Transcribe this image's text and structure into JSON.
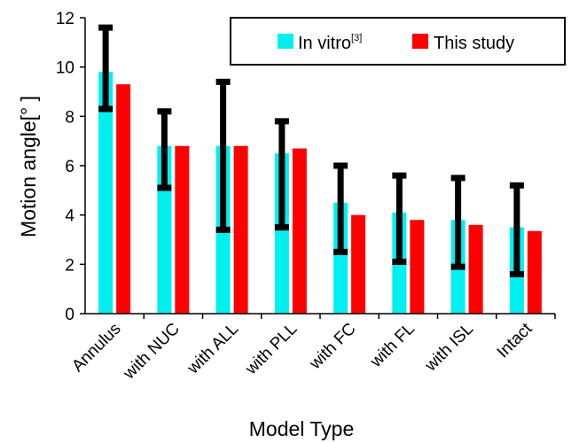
{
  "chart_data": {
    "type": "bar",
    "title": "",
    "xlabel": "Model Type",
    "ylabel": "Motion angle[° ]",
    "ylim": [
      0,
      12
    ],
    "ytick_step": 2,
    "yticks": [
      "0",
      "2",
      "4",
      "6",
      "8",
      "10",
      "12"
    ],
    "grid": false,
    "legend_position": "top-right",
    "categories": [
      "Annulus",
      "with NUC",
      "with ALL",
      "with PLL",
      "with FC",
      "with FL",
      "with ISL",
      "Intact"
    ],
    "series": [
      {
        "name": "In vitro",
        "name_superscript": "[3]",
        "color": "#00F0F0",
        "values": [
          9.8,
          6.8,
          6.8,
          6.5,
          4.5,
          4.1,
          3.8,
          3.5
        ],
        "error_low": [
          8.3,
          5.1,
          3.4,
          3.5,
          2.5,
          2.1,
          1.9,
          1.6
        ],
        "error_high": [
          11.6,
          8.2,
          9.4,
          7.8,
          6.0,
          5.6,
          5.5,
          5.2
        ]
      },
      {
        "name": "This study",
        "color": "#FF0000",
        "values": [
          9.3,
          6.8,
          6.8,
          6.7,
          4.0,
          3.8,
          3.6,
          3.35
        ]
      }
    ],
    "error_bar_color": "#000000"
  }
}
